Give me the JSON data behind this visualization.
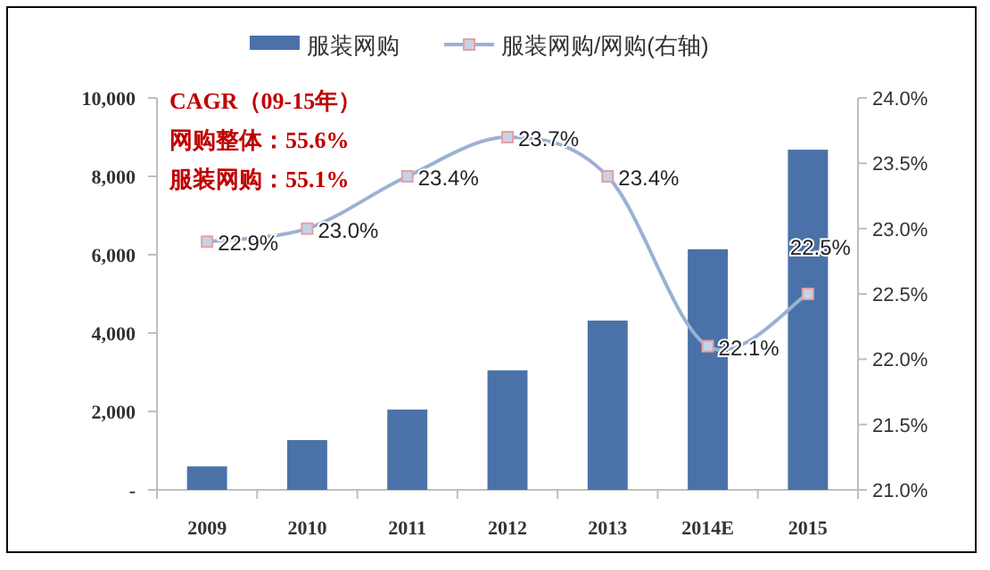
{
  "chart_data": {
    "type": "bar",
    "categories": [
      "2009",
      "2010",
      "2011",
      "2012",
      "2013",
      "2014E",
      "2015"
    ],
    "series": [
      {
        "name": "服装网购",
        "color": "#4a72a8",
        "values": [
          600,
          1270,
          2050,
          3050,
          4320,
          6140,
          8680
        ]
      },
      {
        "name": "服装网购/网购(右轴)",
        "type": "line",
        "axis": "y2",
        "color": "#9bb1d4",
        "marker": "square",
        "value_labels": [
          "22.9%",
          "23.0%",
          "23.4%",
          "23.7%",
          "23.4%",
          "22.1%",
          "22.5%"
        ],
        "values": [
          22.9,
          23.0,
          23.4,
          23.7,
          23.4,
          22.1,
          22.5
        ]
      }
    ],
    "ylim": [
      0,
      10000
    ],
    "yticks": [
      {
        "value": 0,
        "label": "-"
      },
      {
        "value": 2000,
        "label": "2,000"
      },
      {
        "value": 4000,
        "label": "4,000"
      },
      {
        "value": 6000,
        "label": "6,000"
      },
      {
        "value": 8000,
        "label": "8,000"
      },
      {
        "value": 10000,
        "label": "10,000"
      }
    ],
    "y2lim": [
      21.0,
      24.0
    ],
    "y2ticks": [
      {
        "value": 21.0,
        "label": "21.0%"
      },
      {
        "value": 21.5,
        "label": "21.5%"
      },
      {
        "value": 22.0,
        "label": "22.0%"
      },
      {
        "value": 22.5,
        "label": "22.5%"
      },
      {
        "value": 23.0,
        "label": "23.0%"
      },
      {
        "value": 23.5,
        "label": "23.5%"
      },
      {
        "value": 24.0,
        "label": "24.0%"
      }
    ],
    "annotations": [
      "CAGR（09-15年）",
      "网购整体：55.6%",
      "服装网购：55.1%"
    ],
    "legend": "top",
    "grid": false
  }
}
